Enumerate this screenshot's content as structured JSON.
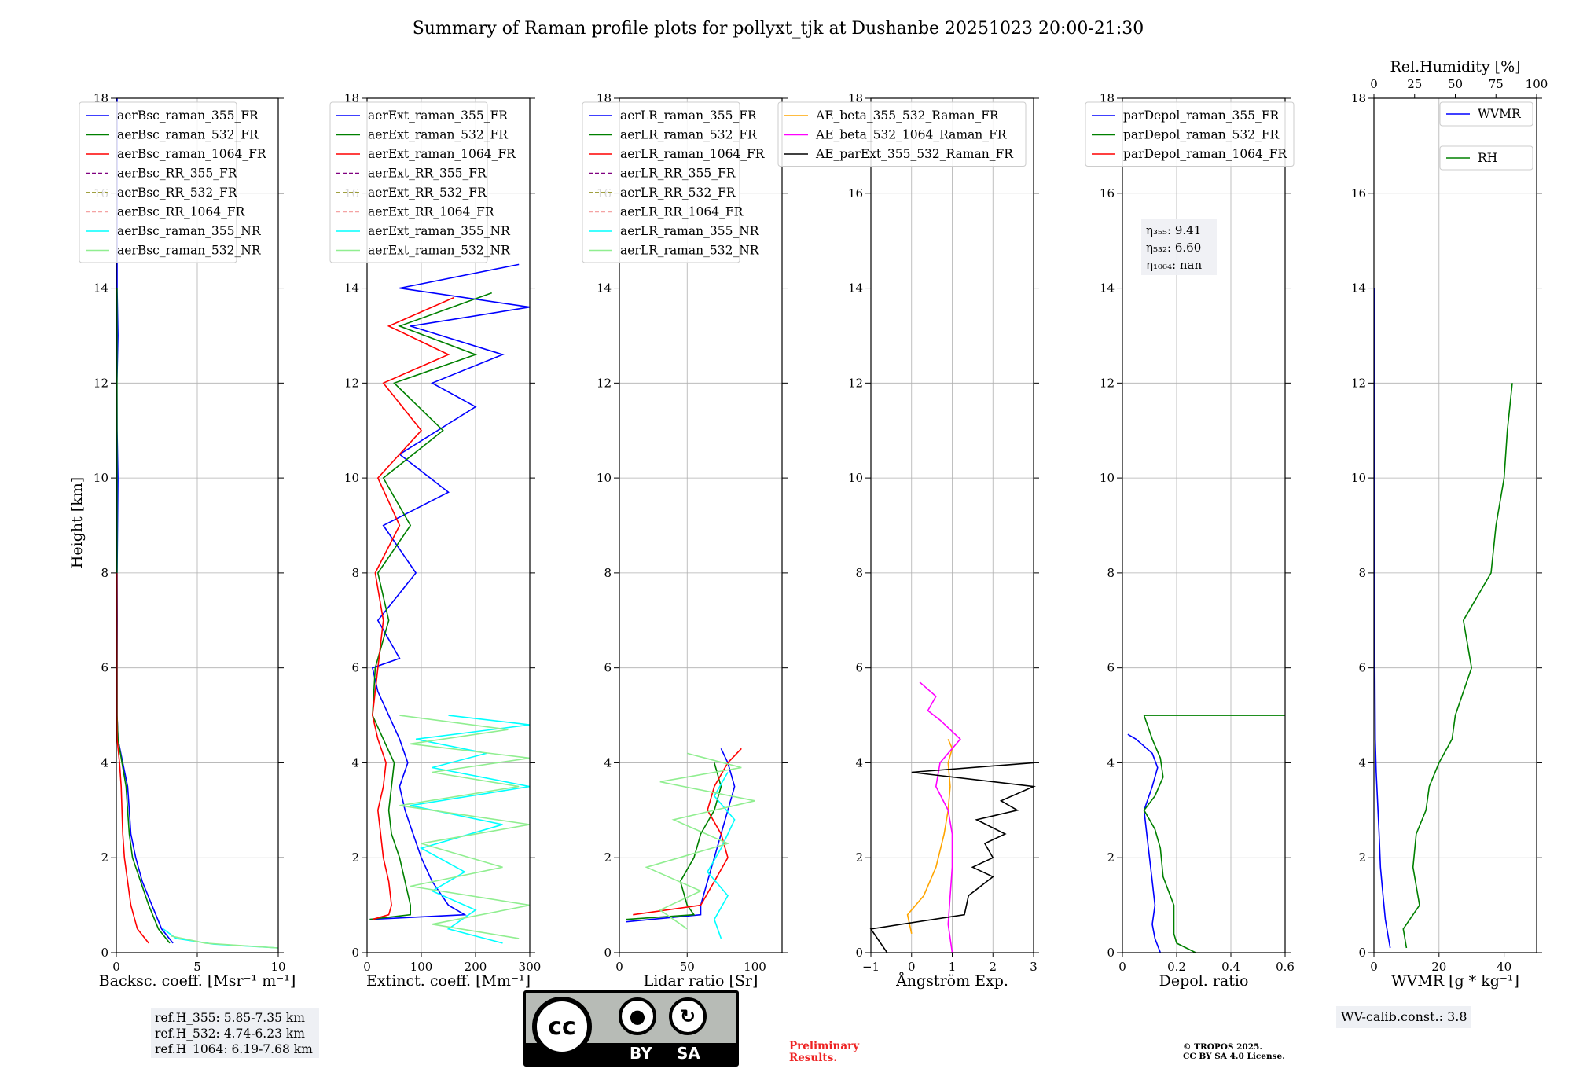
{
  "title": "Summary of Raman profile plots for pollyxt_tjk at Dushanbe 20251023 20:00-21:30",
  "chart_data": [
    {
      "type": "line",
      "name": "backscatter",
      "xlabel": "Backsc. coeff. [Msr⁻¹ m⁻¹]",
      "ylabel": "Height [km]",
      "xlim": [
        0,
        10
      ],
      "ylim": [
        0,
        18
      ],
      "xticks": [
        0,
        5,
        10
      ],
      "yticks": [
        0,
        2,
        4,
        6,
        8,
        10,
        12,
        14,
        16,
        18
      ],
      "grid": true,
      "legend_position": "top-left",
      "series": [
        {
          "name": "aerBsc_raman_355_FR",
          "color": "#0000ff",
          "style": "solid",
          "x": [
            3.5,
            2.8,
            2.2,
            1.6,
            1.2,
            0.9,
            0.8,
            0.7,
            0.4,
            0.1,
            0.05,
            0.05,
            0.06,
            0.05,
            0.1,
            0.05,
            0.04,
            0.1,
            0.05,
            0.05,
            0.05
          ],
          "y": [
            0.2,
            0.5,
            1.0,
            1.5,
            2.0,
            2.5,
            3.0,
            3.5,
            4.0,
            4.5,
            5.0,
            6.0,
            7.0,
            8.0,
            10.0,
            11.0,
            12.0,
            13.0,
            14.0,
            16.0,
            18.0
          ]
        },
        {
          "name": "aerBsc_raman_532_FR",
          "color": "#008000",
          "style": "solid",
          "x": [
            3.3,
            2.6,
            2.0,
            1.5,
            1.0,
            0.8,
            0.7,
            0.6,
            0.35,
            0.1,
            0.05,
            0.04,
            0.04
          ],
          "y": [
            0.2,
            0.5,
            1.0,
            1.5,
            2.0,
            2.5,
            3.0,
            3.5,
            4.0,
            4.5,
            5.0,
            8.0,
            14.0
          ]
        },
        {
          "name": "aerBsc_raman_1064_FR",
          "color": "#ff0000",
          "style": "solid",
          "x": [
            2.0,
            1.3,
            0.9,
            0.7,
            0.5,
            0.4,
            0.35,
            0.3,
            0.2,
            0.05,
            0.03,
            0.03
          ],
          "y": [
            0.2,
            0.5,
            1.0,
            1.5,
            2.0,
            2.5,
            3.0,
            3.5,
            4.0,
            4.5,
            5.0,
            8.0
          ]
        },
        {
          "name": "aerBsc_RR_355_FR",
          "color": "#800080",
          "style": "dashed",
          "x": [],
          "y": []
        },
        {
          "name": "aerBsc_RR_532_FR",
          "color": "#808000",
          "style": "dashed",
          "x": [],
          "y": []
        },
        {
          "name": "aerBsc_RR_1064_FR",
          "color": "#f4a3a3",
          "style": "dashed",
          "x": [],
          "y": []
        },
        {
          "name": "aerBsc_raman_355_NR",
          "color": "#00ffff",
          "style": "solid",
          "x": [
            10,
            6.0,
            3.7,
            2.9
          ],
          "y": [
            0.1,
            0.18,
            0.3,
            0.5
          ]
        },
        {
          "name": "aerBsc_raman_532_NR",
          "color": "#90ee90",
          "style": "solid",
          "x": [
            10,
            5.5,
            3.4
          ],
          "y": [
            0.1,
            0.2,
            0.35
          ]
        }
      ]
    },
    {
      "type": "line",
      "name": "extinction",
      "xlabel": "Extinct. coeff. [Mm⁻¹]",
      "xlim": [
        0,
        300
      ],
      "ylim": [
        0,
        18
      ],
      "xticks": [
        0,
        100,
        200,
        300
      ],
      "yticks": [
        0,
        2,
        4,
        6,
        8,
        10,
        12,
        14,
        16,
        18
      ],
      "grid": true,
      "legend_position": "top-left",
      "series": [
        {
          "name": "aerExt_raman_355_FR",
          "color": "#0000ff",
          "style": "solid",
          "x": [
            5,
            180,
            150,
            120,
            100,
            85,
            70,
            60,
            75,
            60,
            40,
            20,
            10,
            60,
            20,
            90,
            30,
            150,
            60,
            200,
            120,
            250,
            80,
            300,
            60,
            280
          ],
          "y": [
            0.7,
            0.8,
            1.0,
            1.5,
            2.0,
            2.5,
            3.0,
            3.5,
            4.0,
            4.5,
            5.0,
            5.5,
            6.0,
            6.2,
            7.0,
            8.0,
            9.0,
            9.7,
            10.5,
            11.5,
            12.0,
            12.6,
            13.2,
            13.6,
            14.0,
            14.5
          ]
        },
        {
          "name": "aerExt_raman_532_FR",
          "color": "#008000",
          "style": "solid",
          "x": [
            5,
            80,
            80,
            70,
            60,
            45,
            40,
            45,
            50,
            30,
            10,
            15,
            40,
            20,
            80,
            30,
            140,
            50,
            200,
            60,
            230
          ],
          "y": [
            0.7,
            0.8,
            1.0,
            1.5,
            2.0,
            2.5,
            3.0,
            3.5,
            4.0,
            4.5,
            5.0,
            6.0,
            7.0,
            8.0,
            9.0,
            10.0,
            11.0,
            12.0,
            12.6,
            13.2,
            13.9
          ]
        },
        {
          "name": "aerExt_raman_1064_FR",
          "color": "#ff0000",
          "style": "solid",
          "x": [
            10,
            40,
            45,
            40,
            30,
            25,
            20,
            30,
            35,
            20,
            10,
            20,
            30,
            15,
            60,
            20,
            100,
            30,
            150,
            40,
            160
          ],
          "y": [
            0.7,
            0.8,
            1.0,
            1.5,
            2.0,
            2.5,
            3.0,
            3.5,
            4.0,
            4.5,
            5.0,
            6.0,
            7.0,
            8.0,
            9.0,
            10.0,
            11.0,
            12.0,
            12.6,
            13.2,
            13.8
          ]
        },
        {
          "name": "aerExt_RR_355_FR",
          "color": "#800080",
          "style": "dashed",
          "x": [],
          "y": []
        },
        {
          "name": "aerExt_RR_532_FR",
          "color": "#808000",
          "style": "dashed",
          "x": [],
          "y": []
        },
        {
          "name": "aerExt_RR_1064_FR",
          "color": "#f4a3a3",
          "style": "dashed",
          "x": [],
          "y": []
        },
        {
          "name": "aerExt_raman_355_NR",
          "color": "#00ffff",
          "style": "solid",
          "x": [
            250,
            150,
            200,
            120,
            180,
            100,
            250,
            80,
            300,
            120,
            220,
            90,
            300,
            150
          ],
          "y": [
            0.2,
            0.5,
            0.9,
            1.3,
            1.7,
            2.2,
            2.7,
            3.1,
            3.5,
            3.9,
            4.2,
            4.5,
            4.8,
            5.0
          ]
        },
        {
          "name": "aerExt_raman_532_NR",
          "color": "#90ee90",
          "style": "solid",
          "x": [
            280,
            120,
            300,
            80,
            250,
            100,
            300,
            60,
            280,
            120,
            300,
            80,
            260,
            60
          ],
          "y": [
            0.3,
            0.6,
            1.0,
            1.4,
            1.8,
            2.3,
            2.7,
            3.1,
            3.5,
            3.8,
            4.1,
            4.4,
            4.7,
            5.0
          ]
        }
      ]
    },
    {
      "type": "line",
      "name": "lidar_ratio",
      "xlabel": "Lidar ratio [Sr]",
      "xlim": [
        0,
        120
      ],
      "ylim": [
        0,
        18
      ],
      "xticks": [
        0,
        50,
        100
      ],
      "yticks": [
        0,
        2,
        4,
        6,
        8,
        10,
        12,
        14,
        16,
        18
      ],
      "grid": true,
      "legend_position": "top-left",
      "series": [
        {
          "name": "aerLR_raman_355_FR",
          "color": "#0000ff",
          "style": "solid",
          "x": [
            5,
            60,
            60,
            65,
            70,
            75,
            80,
            85,
            80,
            75
          ],
          "y": [
            0.65,
            0.8,
            1.0,
            1.5,
            2.0,
            2.5,
            3.0,
            3.5,
            4.0,
            4.3
          ]
        },
        {
          "name": "aerLR_raman_532_FR",
          "color": "#008000",
          "style": "solid",
          "x": [
            5,
            55,
            50,
            45,
            55,
            60,
            70,
            75,
            70
          ],
          "y": [
            0.7,
            0.8,
            1.0,
            1.5,
            2.0,
            2.5,
            3.0,
            3.5,
            4.0
          ]
        },
        {
          "name": "aerLR_raman_1064_FR",
          "color": "#ff0000",
          "style": "solid",
          "x": [
            10,
            60,
            70,
            80,
            75,
            65,
            70,
            80,
            90
          ],
          "y": [
            0.8,
            1.0,
            1.5,
            2.0,
            2.5,
            3.0,
            3.5,
            4.0,
            4.3
          ]
        },
        {
          "name": "aerLR_RR_355_FR",
          "color": "#800080",
          "style": "dashed",
          "x": [],
          "y": []
        },
        {
          "name": "aerLR_RR_532_FR",
          "color": "#808000",
          "style": "dashed",
          "x": [],
          "y": []
        },
        {
          "name": "aerLR_RR_1064_FR",
          "color": "#f4a3a3",
          "style": "dashed",
          "x": [],
          "y": []
        },
        {
          "name": "aerLR_raman_355_NR",
          "color": "#00ffff",
          "style": "solid",
          "x": [
            75,
            70,
            80,
            65,
            75,
            85,
            70,
            80
          ],
          "y": [
            0.3,
            0.7,
            1.2,
            1.7,
            2.2,
            2.8,
            3.3,
            3.8
          ]
        },
        {
          "name": "aerLR_raman_532_NR",
          "color": "#90ee90",
          "style": "solid",
          "x": [
            50,
            30,
            60,
            20,
            80,
            40,
            100,
            30,
            90,
            50
          ],
          "y": [
            0.5,
            0.9,
            1.3,
            1.8,
            2.3,
            2.8,
            3.2,
            3.6,
            3.9,
            4.2
          ]
        }
      ]
    },
    {
      "type": "line",
      "name": "angstrom",
      "xlabel": "Ångström Exp.",
      "xlim": [
        -1,
        3
      ],
      "ylim": [
        0,
        18
      ],
      "xticks": [
        -1,
        0,
        1,
        2,
        3
      ],
      "yticks": [
        0,
        2,
        4,
        6,
        8,
        10,
        12,
        14,
        16,
        18
      ],
      "grid": true,
      "legend_position": "top-left",
      "series": [
        {
          "name": "AE_beta_355_532_Raman_FR",
          "color": "#ffa500",
          "style": "solid",
          "x": [
            0.0,
            -0.1,
            0.3,
            0.6,
            0.8,
            0.9,
            0.95,
            0.9,
            1.0,
            0.9
          ],
          "y": [
            0.4,
            0.8,
            1.2,
            1.8,
            2.5,
            3.0,
            3.5,
            4.0,
            4.3,
            4.5
          ]
        },
        {
          "name": "AE_beta_532_1064_Raman_FR",
          "color": "#ff00ff",
          "style": "solid",
          "x": [
            1.0,
            0.9,
            0.95,
            1.0,
            1.0,
            0.9,
            0.6,
            0.7,
            1.2,
            0.7,
            0.4,
            0.6,
            0.2
          ],
          "y": [
            0.0,
            0.6,
            1.2,
            1.8,
            2.5,
            3.0,
            3.5,
            4.0,
            4.5,
            4.9,
            5.1,
            5.4,
            5.7
          ]
        },
        {
          "name": "AE_parExt_355_532_Raman_FR",
          "color": "#000000",
          "style": "solid",
          "x": [
            -0.6,
            -1.0,
            1.3,
            1.4,
            2.0,
            1.5,
            2.0,
            1.8,
            2.3,
            1.6,
            2.6,
            2.2,
            3.0,
            0.0,
            3.0
          ],
          "y": [
            0.0,
            0.5,
            0.8,
            1.2,
            1.6,
            1.8,
            2.0,
            2.3,
            2.5,
            2.8,
            3.0,
            3.2,
            3.5,
            3.8,
            4.0
          ]
        }
      ]
    },
    {
      "type": "line",
      "name": "depolarization",
      "xlabel": "Depol. ratio",
      "xlim": [
        0,
        0.6
      ],
      "ylim": [
        0,
        18
      ],
      "xticks": [
        0.0,
        0.2,
        0.4,
        0.6
      ],
      "yticks": [
        0,
        2,
        4,
        6,
        8,
        10,
        12,
        14,
        16,
        18
      ],
      "grid": true,
      "legend_position": "top-left",
      "annotations": [
        "η₃₅₅: 9.41",
        "η₅₃₂: 6.60",
        "η₁₀₆₄: nan"
      ],
      "series": [
        {
          "name": "parDepol_raman_355_FR",
          "color": "#0000ff",
          "style": "solid",
          "x": [
            0.14,
            0.12,
            0.11,
            0.12,
            0.11,
            0.1,
            0.09,
            0.08,
            0.11,
            0.13,
            0.11,
            0.07,
            0.05,
            0.02
          ],
          "y": [
            0.0,
            0.3,
            0.6,
            1.0,
            1.5,
            2.0,
            2.5,
            3.0,
            3.5,
            3.9,
            4.2,
            4.4,
            4.5,
            4.6
          ]
        },
        {
          "name": "parDepol_raman_532_FR",
          "color": "#008000",
          "style": "solid",
          "x": [
            0.27,
            0.2,
            0.19,
            0.19,
            0.15,
            0.14,
            0.12,
            0.08,
            0.12,
            0.15,
            0.14,
            0.11,
            0.08,
            0.6
          ],
          "y": [
            0.0,
            0.2,
            0.4,
            1.0,
            1.6,
            2.2,
            2.6,
            3.0,
            3.3,
            3.7,
            4.1,
            4.5,
            5.0,
            5.0
          ]
        },
        {
          "name": "parDepol_raman_1064_FR",
          "color": "#ff0000",
          "style": "solid",
          "x": [],
          "y": []
        }
      ]
    },
    {
      "type": "line",
      "name": "water_vapor",
      "xlabel": "WVMR [g * kg⁻¹]",
      "x2label": "Rel.Humidity [%]",
      "xlim": [
        0,
        50
      ],
      "x2lim": [
        0,
        100
      ],
      "ylim": [
        0,
        18
      ],
      "xticks": [
        0,
        20,
        40
      ],
      "x2ticks": [
        0,
        25,
        50,
        75,
        100
      ],
      "yticks": [
        0,
        2,
        4,
        6,
        8,
        10,
        12,
        14,
        16,
        18
      ],
      "grid": true,
      "legend_position": "top-right",
      "series": [
        {
          "name": "WVMR",
          "color": "#0000ff",
          "style": "solid",
          "x": [
            5,
            4.5,
            3.5,
            2.8,
            2.0,
            1.6,
            1.1,
            0.7,
            0.4,
            0.3,
            0.2,
            0.1
          ],
          "y": [
            0.1,
            0.3,
            0.7,
            1.2,
            1.8,
            2.5,
            3.2,
            3.8,
            4.5,
            6.0,
            10.0,
            14.0
          ]
        },
        {
          "name": "RH",
          "color": "#008000",
          "style": "solid",
          "axis": "x2",
          "x": [
            20,
            18,
            28,
            24,
            26,
            32,
            34,
            40,
            48,
            50,
            60,
            55,
            72,
            75,
            80,
            82,
            85
          ],
          "y": [
            0.1,
            0.5,
            1.0,
            1.8,
            2.5,
            3.0,
            3.5,
            4.0,
            4.5,
            5.0,
            6.0,
            7.0,
            8.0,
            9.0,
            10.0,
            11.0,
            12.0
          ]
        }
      ]
    }
  ],
  "ref_box": [
    "ref.H_355: 5.85-7.35 km",
    "ref.H_532: 4.74-6.23 km",
    "ref.H_1064: 6.19-7.68 km"
  ],
  "wv_calib": "WV-calib.const.: 3.8",
  "preliminary": [
    "Preliminary",
    "Results."
  ],
  "copyright": [
    "© TROPOS 2025.",
    "CC BY SA 4.0 License."
  ],
  "license_badge": {
    "cc": "cc",
    "by": "BY",
    "sa": "SA"
  }
}
